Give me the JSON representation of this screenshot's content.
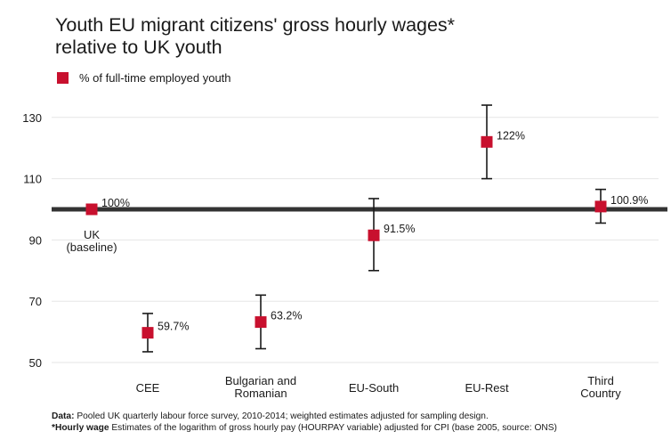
{
  "title_line1": "Youth EU migrant citizens' gross hourly wages*",
  "title_line2": "relative to UK youth",
  "legend": {
    "label": "% of full-time employed youth",
    "color": "#c8102e"
  },
  "footnotes": {
    "data_label": "Data:",
    "data_text": " Pooled UK quarterly labour force survey, 2010-2014; weighted estimates adjusted for sampling design.",
    "wage_label": "*Hourly wage",
    "wage_text": " Estimates of the logarithm of gross hourly pay (HOURPAY variable) adjusted for CPI (base 2005, source: ONS)"
  },
  "chart_data": {
    "type": "scatter",
    "ylim": [
      45,
      137
    ],
    "yticks": [
      50,
      70,
      90,
      110,
      130
    ],
    "baseline": 100,
    "grid": true,
    "legend_position": "top-left",
    "categories": [
      [
        "UK",
        "(baseline)"
      ],
      [
        "CEE"
      ],
      [
        "Bulgarian and",
        "Romanian"
      ],
      [
        "EU-South"
      ],
      [
        "EU-Rest"
      ],
      [
        "Third",
        "Country"
      ]
    ],
    "series": [
      {
        "name": "% of full-time employed youth",
        "color": "#c8102e",
        "values": [
          100,
          59.7,
          63.2,
          91.5,
          122,
          100.9
        ],
        "labels": [
          "100%",
          "59.7%",
          "63.2%",
          "91.5%",
          "122%",
          "100.9%"
        ],
        "lower": [
          null,
          53.5,
          54.5,
          80,
          110,
          95.5
        ],
        "upper": [
          null,
          66,
          72,
          103.5,
          134,
          106.5
        ]
      }
    ]
  }
}
